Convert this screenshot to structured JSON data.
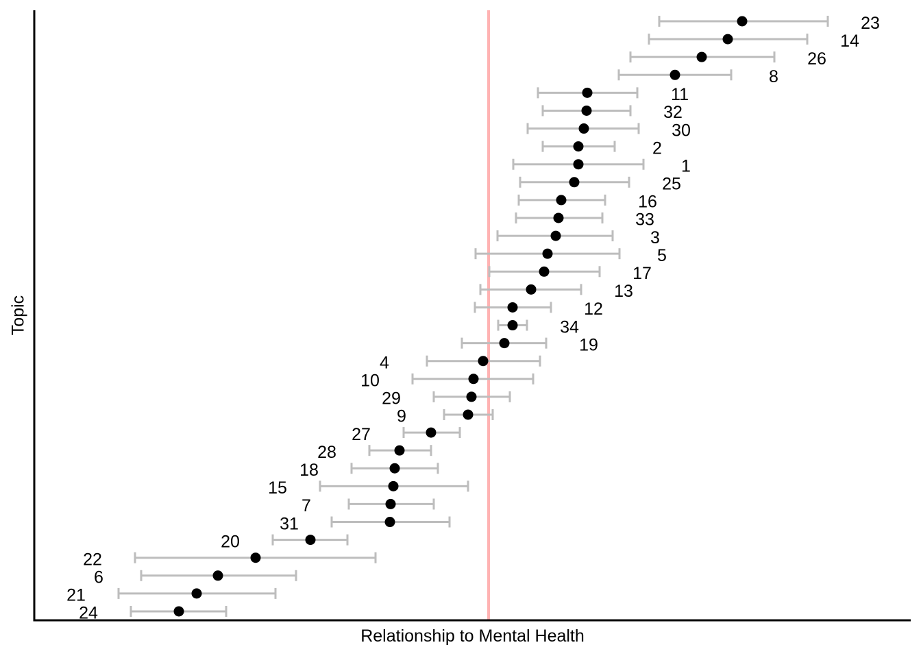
{
  "chart_data": {
    "type": "scatter",
    "subtype": "dot-plot-with-horizontal-error-bars",
    "title": "",
    "xlabel": "Relationship to Mental Health",
    "ylabel": "Topic",
    "xlim": [
      -0.663,
      0.616
    ],
    "grid": false,
    "legend": false,
    "x_tick_labels": [],
    "y_tick_labels": [],
    "reference_line": {
      "orientation": "vertical",
      "x": 0,
      "color": "#ffb3b3"
    },
    "colors": {
      "point": "#000000",
      "error_bar": "#bdbdbd",
      "axis": "#000000",
      "label_text": "#000000",
      "background": "#ffffff"
    },
    "points": [
      {
        "topic": "23",
        "value": 0.37,
        "ci_low": 0.249,
        "ci_high": 0.495,
        "label_side": "right"
      },
      {
        "topic": "14",
        "value": 0.349,
        "ci_low": 0.234,
        "ci_high": 0.465,
        "label_side": "right"
      },
      {
        "topic": "26",
        "value": 0.311,
        "ci_low": 0.207,
        "ci_high": 0.417,
        "label_side": "right"
      },
      {
        "topic": "8",
        "value": 0.272,
        "ci_low": 0.19,
        "ci_high": 0.354,
        "label_side": "right"
      },
      {
        "topic": "11",
        "value": 0.144,
        "ci_low": 0.072,
        "ci_high": 0.217,
        "label_side": "right"
      },
      {
        "topic": "32",
        "value": 0.143,
        "ci_low": 0.079,
        "ci_high": 0.207,
        "label_side": "right"
      },
      {
        "topic": "30",
        "value": 0.139,
        "ci_low": 0.057,
        "ci_high": 0.219,
        "label_side": "right"
      },
      {
        "topic": "2",
        "value": 0.131,
        "ci_low": 0.079,
        "ci_high": 0.184,
        "label_side": "right"
      },
      {
        "topic": "1",
        "value": 0.131,
        "ci_low": 0.036,
        "ci_high": 0.226,
        "label_side": "right"
      },
      {
        "topic": "25",
        "value": 0.125,
        "ci_low": 0.046,
        "ci_high": 0.205,
        "label_side": "right"
      },
      {
        "topic": "16",
        "value": 0.106,
        "ci_low": 0.044,
        "ci_high": 0.17,
        "label_side": "right"
      },
      {
        "topic": "33",
        "value": 0.102,
        "ci_low": 0.04,
        "ci_high": 0.166,
        "label_side": "right"
      },
      {
        "topic": "3",
        "value": 0.098,
        "ci_low": 0.013,
        "ci_high": 0.181,
        "label_side": "right"
      },
      {
        "topic": "5",
        "value": 0.086,
        "ci_low": -0.019,
        "ci_high": 0.191,
        "label_side": "right"
      },
      {
        "topic": "17",
        "value": 0.081,
        "ci_low": 0.001,
        "ci_high": 0.162,
        "label_side": "right"
      },
      {
        "topic": "13",
        "value": 0.062,
        "ci_low": -0.012,
        "ci_high": 0.135,
        "label_side": "right"
      },
      {
        "topic": "12",
        "value": 0.035,
        "ci_low": -0.02,
        "ci_high": 0.091,
        "label_side": "right"
      },
      {
        "topic": "34",
        "value": 0.035,
        "ci_low": 0.014,
        "ci_high": 0.056,
        "label_side": "right"
      },
      {
        "topic": "19",
        "value": 0.023,
        "ci_low": -0.039,
        "ci_high": 0.084,
        "label_side": "right"
      },
      {
        "topic": "4",
        "value": -0.008,
        "ci_low": -0.09,
        "ci_high": 0.075,
        "label_side": "left"
      },
      {
        "topic": "10",
        "value": -0.022,
        "ci_low": -0.111,
        "ci_high": 0.065,
        "label_side": "left"
      },
      {
        "topic": "29",
        "value": -0.025,
        "ci_low": -0.08,
        "ci_high": 0.031,
        "label_side": "left"
      },
      {
        "topic": "9",
        "value": -0.03,
        "ci_low": -0.065,
        "ci_high": 0.006,
        "label_side": "left"
      },
      {
        "topic": "27",
        "value": -0.084,
        "ci_low": -0.124,
        "ci_high": -0.042,
        "label_side": "left"
      },
      {
        "topic": "28",
        "value": -0.13,
        "ci_low": -0.174,
        "ci_high": -0.084,
        "label_side": "left"
      },
      {
        "topic": "18",
        "value": -0.137,
        "ci_low": -0.2,
        "ci_high": -0.074,
        "label_side": "left"
      },
      {
        "topic": "15",
        "value": -0.139,
        "ci_low": -0.246,
        "ci_high": -0.03,
        "label_side": "left"
      },
      {
        "topic": "7",
        "value": -0.143,
        "ci_low": -0.204,
        "ci_high": -0.08,
        "label_side": "left"
      },
      {
        "topic": "31",
        "value": -0.144,
        "ci_low": -0.229,
        "ci_high": -0.057,
        "label_side": "left"
      },
      {
        "topic": "20",
        "value": -0.26,
        "ci_low": -0.315,
        "ci_high": -0.206,
        "label_side": "left"
      },
      {
        "topic": "22",
        "value": -0.34,
        "ci_low": -0.516,
        "ci_high": -0.165,
        "label_side": "left"
      },
      {
        "topic": "6",
        "value": -0.395,
        "ci_low": -0.507,
        "ci_high": -0.281,
        "label_side": "left"
      },
      {
        "topic": "21",
        "value": -0.426,
        "ci_low": -0.54,
        "ci_high": -0.311,
        "label_side": "left"
      },
      {
        "topic": "24",
        "value": -0.452,
        "ci_low": -0.522,
        "ci_high": -0.383,
        "label_side": "left"
      }
    ]
  }
}
